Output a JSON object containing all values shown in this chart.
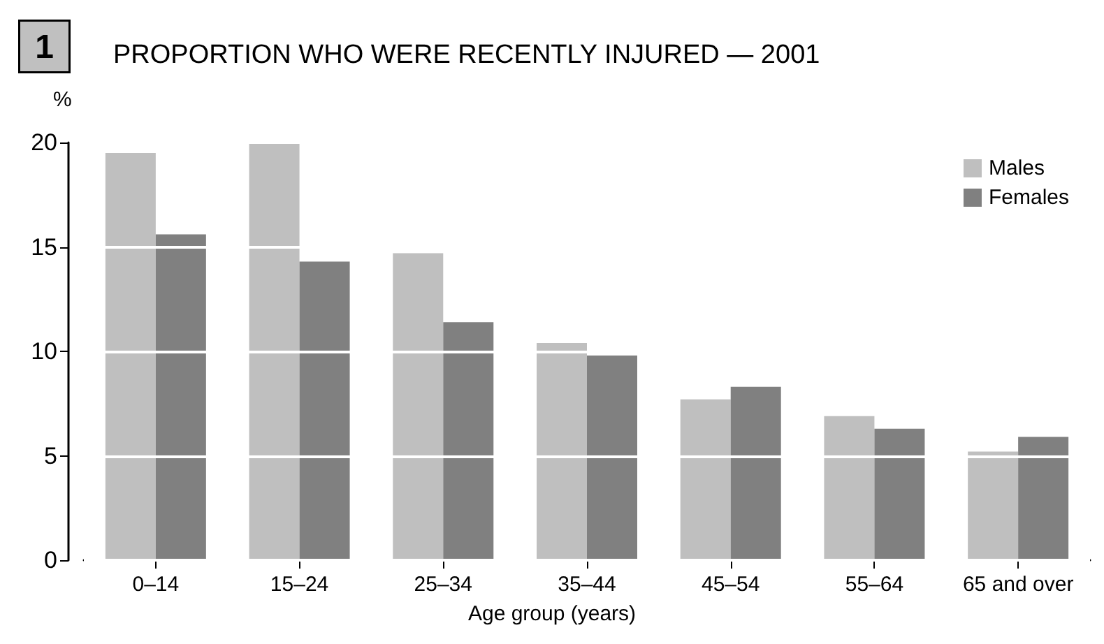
{
  "chart_data": {
    "type": "bar",
    "title": "PROPORTION WHO WERE RECENTLY INJURED — 2001",
    "annotations": [
      "1"
    ],
    "ylabel": "%",
    "xlabel": "Age group (years)",
    "categories": [
      "0–14",
      "15–24",
      "25–34",
      "35–44",
      "45–54",
      "55–64",
      "65 and over"
    ],
    "series": [
      {
        "name": "Males",
        "color": "#bfbfbf",
        "values": [
          19.5,
          20.0,
          14.7,
          10.4,
          7.7,
          6.9,
          5.2
        ]
      },
      {
        "name": "Females",
        "color": "#808080",
        "values": [
          15.6,
          14.3,
          11.4,
          9.8,
          8.3,
          6.3,
          5.9
        ]
      }
    ],
    "ylim": [
      0,
      20
    ],
    "yticks": [
      0,
      5,
      10,
      15,
      20
    ],
    "grid": "y",
    "legend": "top right"
  }
}
